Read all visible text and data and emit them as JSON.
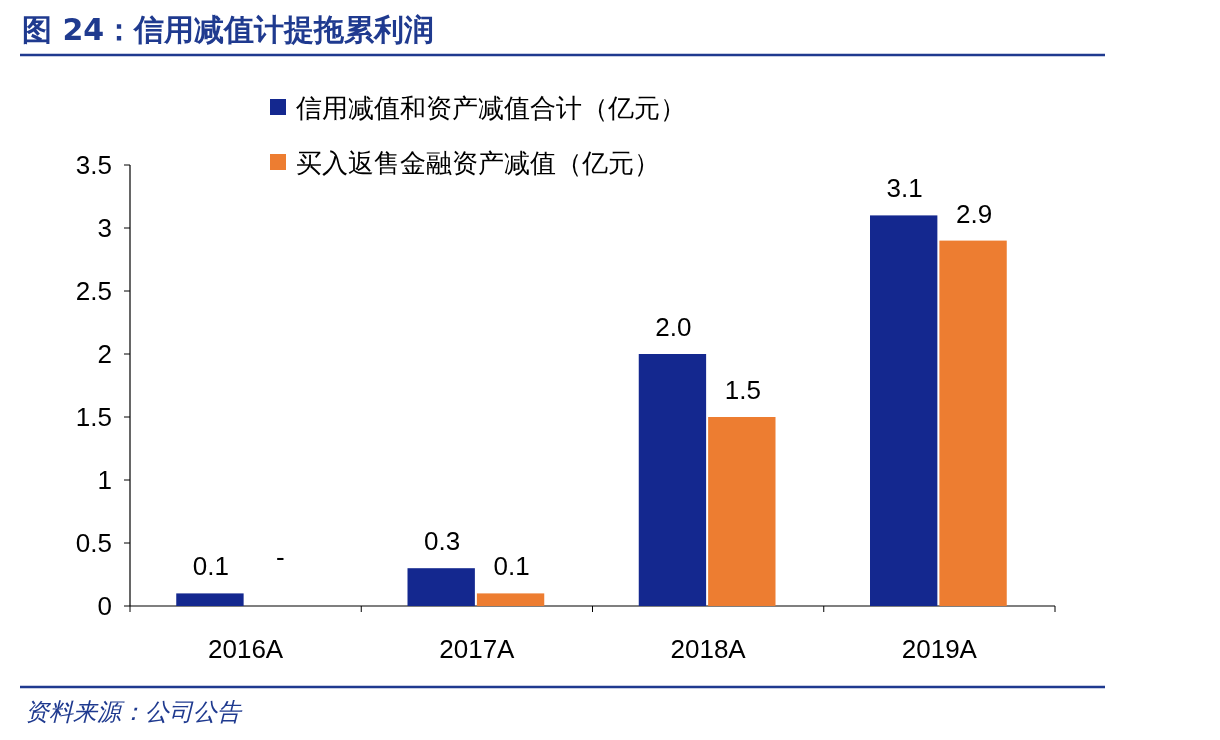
{
  "chart_data": {
    "type": "bar",
    "title": "图 24：信用减值计提拖累利润",
    "categories": [
      "2016A",
      "2017A",
      "2018A",
      "2019A"
    ],
    "series": [
      {
        "name": "信用减值和资产减值合计（亿元）",
        "color": "#14288f",
        "values": [
          0.1,
          0.3,
          2.0,
          3.1
        ],
        "value_labels": [
          "0.1",
          "0.3",
          "2.0",
          "3.1"
        ]
      },
      {
        "name": "买入返售金融资产减值（亿元）",
        "color": "#ed7d31",
        "values": [
          null,
          0.1,
          1.5,
          2.9
        ],
        "value_labels": [
          "-",
          "0.1",
          "1.5",
          "2.9"
        ]
      }
    ],
    "ylim": [
      0,
      3.5
    ],
    "yticks": [
      0,
      0.5,
      1,
      1.5,
      2,
      2.5,
      3,
      3.5
    ],
    "legend": "top left",
    "annotations": [
      "资料来源：公司公告"
    ]
  }
}
